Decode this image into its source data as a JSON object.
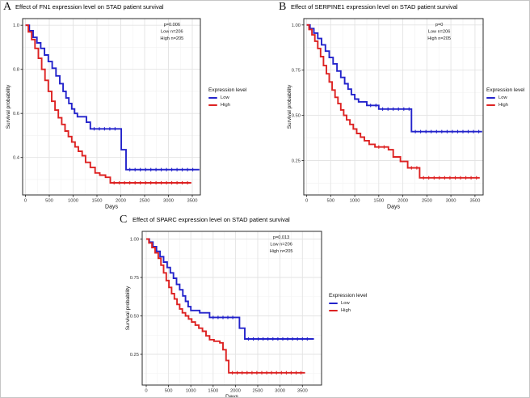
{
  "figure": {
    "panels": [
      {
        "label": "A",
        "title": "Effect of FN1 expression level on STAD patient survival"
      },
      {
        "label": "B",
        "title": "Effect of SERPINE1 expression level on STAD patient survival"
      },
      {
        "label": "C",
        "title": "Effect of SPARC expression level on STAD patient survival"
      }
    ],
    "legend": {
      "title": "Expression level",
      "items": [
        {
          "label": "Low",
          "color": "#2323cb"
        },
        {
          "label": "High",
          "color": "#dd2222"
        }
      ]
    }
  },
  "chart_data": [
    {
      "type": "line",
      "subtype": "kaplan-meier-step",
      "title": "Effect of FN1 expression level on STAD patient survival",
      "xlabel": "Days",
      "ylabel": "Survival probability",
      "xlim": [
        -60,
        3670
      ],
      "ylim": [
        0.23,
        1.03
      ],
      "grid": true,
      "legend_position": "right",
      "xticks": {
        "values": [
          0,
          500,
          1000,
          1500,
          2000,
          2500,
          3000,
          3500
        ],
        "labels": [
          "0",
          "500",
          "1000",
          "1500",
          "2000",
          "2500",
          "3000",
          "3500"
        ]
      },
      "yticks": {
        "values": [
          0.4,
          0.6,
          0.8,
          1.0
        ],
        "labels": [
          "0.4",
          "0.6",
          "0.8",
          "1.0"
        ]
      },
      "annotation": {
        "lines": [
          "p=0.006",
          "Low n=206",
          "High n=205"
        ]
      },
      "series": [
        {
          "name": "Low",
          "color": "#2323cb",
          "points": [
            [
              0,
              1.0
            ],
            [
              80,
              0.975
            ],
            [
              160,
              0.945
            ],
            [
              240,
              0.92
            ],
            [
              320,
              0.895
            ],
            [
              400,
              0.865
            ],
            [
              480,
              0.835
            ],
            [
              560,
              0.805
            ],
            [
              640,
              0.77
            ],
            [
              720,
              0.735
            ],
            [
              790,
              0.7
            ],
            [
              850,
              0.67
            ],
            [
              910,
              0.645
            ],
            [
              970,
              0.62
            ],
            [
              1030,
              0.6
            ],
            [
              1090,
              0.585
            ],
            [
              1280,
              0.56
            ],
            [
              1360,
              0.53
            ],
            [
              2010,
              0.435
            ],
            [
              2110,
              0.345
            ],
            [
              3650,
              0.345
            ]
          ]
        },
        {
          "name": "High",
          "color": "#dd2222",
          "points": [
            [
              0,
              1.0
            ],
            [
              60,
              0.97
            ],
            [
              130,
              0.935
            ],
            [
              200,
              0.895
            ],
            [
              270,
              0.85
            ],
            [
              340,
              0.8
            ],
            [
              410,
              0.75
            ],
            [
              480,
              0.7
            ],
            [
              550,
              0.655
            ],
            [
              620,
              0.615
            ],
            [
              690,
              0.58
            ],
            [
              760,
              0.55
            ],
            [
              830,
              0.52
            ],
            [
              900,
              0.495
            ],
            [
              970,
              0.47
            ],
            [
              1040,
              0.448
            ],
            [
              1110,
              0.428
            ],
            [
              1190,
              0.408
            ],
            [
              1260,
              0.378
            ],
            [
              1360,
              0.355
            ],
            [
              1460,
              0.33
            ],
            [
              1560,
              0.32
            ],
            [
              1680,
              0.31
            ],
            [
              1780,
              0.285
            ],
            [
              3480,
              0.285
            ]
          ]
        }
      ]
    },
    {
      "type": "line",
      "subtype": "kaplan-meier-step",
      "title": "Effect of SERPINE1 expression level on STAD patient survival",
      "xlabel": "Days",
      "ylabel": "Survival probability",
      "xlim": [
        -60,
        3670
      ],
      "ylim": [
        0.06,
        1.035
      ],
      "grid": true,
      "legend_position": "right",
      "xticks": {
        "values": [
          0,
          500,
          1000,
          1500,
          2000,
          2500,
          3000,
          3500
        ],
        "labels": [
          "0",
          "500",
          "1000",
          "1500",
          "2000",
          "2500",
          "3000",
          "3500"
        ]
      },
      "yticks": {
        "values": [
          0.25,
          0.5,
          0.75,
          1.0
        ],
        "labels": [
          "0.25",
          "0.50",
          "0.75",
          "1.00"
        ]
      },
      "annotation": {
        "lines": [
          "p=0",
          "Low n=206",
          "High n=205"
        ]
      },
      "series": [
        {
          "name": "Low",
          "color": "#2323cb",
          "points": [
            [
              0,
              1.0
            ],
            [
              70,
              0.98
            ],
            [
              150,
              0.955
            ],
            [
              230,
              0.925
            ],
            [
              310,
              0.89
            ],
            [
              390,
              0.855
            ],
            [
              470,
              0.82
            ],
            [
              550,
              0.785
            ],
            [
              630,
              0.745
            ],
            [
              710,
              0.71
            ],
            [
              790,
              0.675
            ],
            [
              860,
              0.645
            ],
            [
              930,
              0.615
            ],
            [
              1000,
              0.59
            ],
            [
              1080,
              0.575
            ],
            [
              1250,
              0.555
            ],
            [
              1500,
              0.535
            ],
            [
              2180,
              0.41
            ],
            [
              3650,
              0.41
            ]
          ]
        },
        {
          "name": "High",
          "color": "#dd2222",
          "points": [
            [
              0,
              1.0
            ],
            [
              50,
              0.975
            ],
            [
              110,
              0.945
            ],
            [
              170,
              0.91
            ],
            [
              230,
              0.87
            ],
            [
              290,
              0.825
            ],
            [
              350,
              0.775
            ],
            [
              410,
              0.73
            ],
            [
              470,
              0.685
            ],
            [
              530,
              0.64
            ],
            [
              590,
              0.6
            ],
            [
              650,
              0.565
            ],
            [
              710,
              0.53
            ],
            [
              770,
              0.5
            ],
            [
              830,
              0.475
            ],
            [
              900,
              0.45
            ],
            [
              970,
              0.425
            ],
            [
              1040,
              0.4
            ],
            [
              1120,
              0.38
            ],
            [
              1200,
              0.36
            ],
            [
              1300,
              0.34
            ],
            [
              1420,
              0.325
            ],
            [
              1700,
              0.31
            ],
            [
              1800,
              0.27
            ],
            [
              1950,
              0.245
            ],
            [
              2100,
              0.21
            ],
            [
              2350,
              0.155
            ],
            [
              3600,
              0.155
            ]
          ]
        }
      ]
    },
    {
      "type": "line",
      "subtype": "kaplan-meier-step",
      "title": "Effect of SPARC expression level on STAD patient survival",
      "xlabel": "Days",
      "ylabel": "Survival probability",
      "xlim": [
        -90,
        3930
      ],
      "ylim": [
        0.05,
        1.05
      ],
      "grid": true,
      "legend_position": "right",
      "xticks": {
        "values": [
          0,
          500,
          1000,
          1500,
          2000,
          2500,
          3000,
          3500
        ],
        "labels": [
          "0",
          "500",
          "1000",
          "1500",
          "2000",
          "2500",
          "3000",
          "3500"
        ]
      },
      "yticks": {
        "values": [
          0.25,
          0.5,
          0.75,
          1.0
        ],
        "labels": [
          "0.25",
          "0.50",
          "0.75",
          "1.00"
        ]
      },
      "annotation": {
        "lines": [
          "p=0.013",
          "Low n=206",
          "High n=205"
        ]
      },
      "series": [
        {
          "name": "Low",
          "color": "#2323cb",
          "points": [
            [
              0,
              1.0
            ],
            [
              70,
              0.98
            ],
            [
              150,
              0.95
            ],
            [
              230,
              0.92
            ],
            [
              310,
              0.885
            ],
            [
              390,
              0.85
            ],
            [
              470,
              0.815
            ],
            [
              540,
              0.78
            ],
            [
              610,
              0.745
            ],
            [
              680,
              0.705
            ],
            [
              750,
              0.67
            ],
            [
              820,
              0.63
            ],
            [
              880,
              0.595
            ],
            [
              940,
              0.56
            ],
            [
              1000,
              0.535
            ],
            [
              1200,
              0.52
            ],
            [
              1420,
              0.49
            ],
            [
              2090,
              0.42
            ],
            [
              2210,
              0.35
            ],
            [
              3760,
              0.35
            ]
          ]
        },
        {
          "name": "High",
          "color": "#dd2222",
          "points": [
            [
              0,
              1.0
            ],
            [
              60,
              0.975
            ],
            [
              130,
              0.945
            ],
            [
              200,
              0.91
            ],
            [
              270,
              0.875
            ],
            [
              330,
              0.83
            ],
            [
              390,
              0.78
            ],
            [
              450,
              0.73
            ],
            [
              510,
              0.685
            ],
            [
              570,
              0.645
            ],
            [
              630,
              0.61
            ],
            [
              690,
              0.575
            ],
            [
              750,
              0.545
            ],
            [
              810,
              0.52
            ],
            [
              880,
              0.5
            ],
            [
              950,
              0.48
            ],
            [
              1020,
              0.46
            ],
            [
              1100,
              0.44
            ],
            [
              1180,
              0.42
            ],
            [
              1260,
              0.4
            ],
            [
              1340,
              0.37
            ],
            [
              1420,
              0.345
            ],
            [
              1520,
              0.335
            ],
            [
              1650,
              0.325
            ],
            [
              1720,
              0.28
            ],
            [
              1790,
              0.21
            ],
            [
              1850,
              0.13
            ],
            [
              3560,
              0.13
            ]
          ]
        }
      ]
    }
  ]
}
